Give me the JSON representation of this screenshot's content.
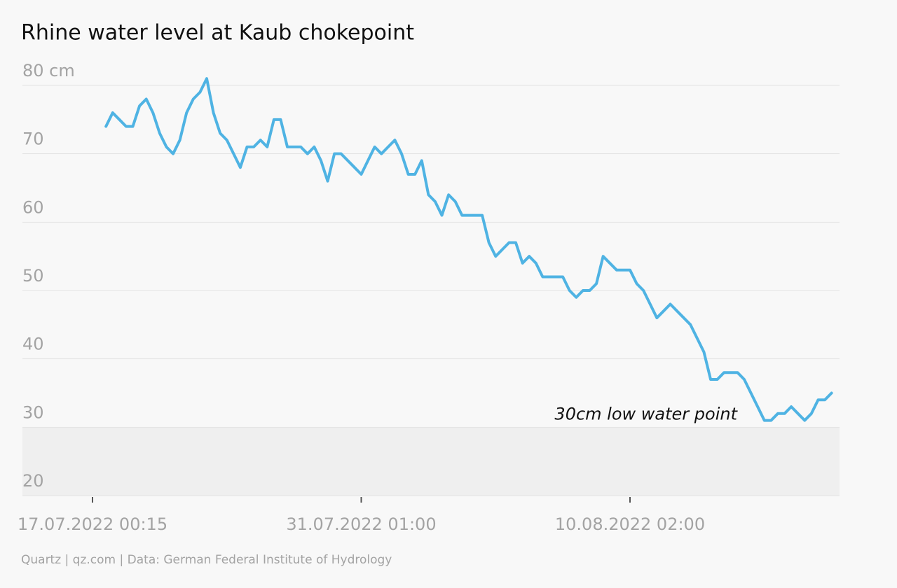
{
  "chart_data": {
    "type": "line",
    "title": "Rhine water level at Kaub chokepoint",
    "source": "Quartz | qz.com | Data: German Federal Institute of Hydrology",
    "annotation": "30cm low water point",
    "low_water_level": 30,
    "ylim": [
      20,
      80
    ],
    "yticks": [
      20,
      30,
      40,
      50,
      60,
      70,
      {
        "value": 80,
        "label": "80 cm"
      }
    ],
    "grid": true,
    "color": "#4fb3e3",
    "band_color": "#efefef",
    "categories": [
      "17.07.2022 00:15",
      null,
      null,
      null,
      null,
      null,
      null,
      null,
      null,
      null,
      null,
      null,
      null,
      null,
      null,
      null,
      null,
      null,
      null,
      null,
      null,
      null,
      null,
      null,
      null,
      null,
      null,
      null,
      null,
      null,
      null,
      null,
      null,
      null,
      null,
      null,
      null,
      null,
      null,
      null,
      "31.07.2022 01:00",
      null,
      null,
      null,
      null,
      null,
      null,
      null,
      null,
      null,
      null,
      null,
      null,
      null,
      null,
      null,
      null,
      null,
      null,
      null,
      null,
      null,
      null,
      null,
      null,
      null,
      null,
      null,
      null,
      null,
      null,
      null,
      null,
      null,
      null,
      null,
      null,
      null,
      null,
      null,
      "10.08.2022 02:00",
      null,
      null,
      null,
      null,
      null,
      null,
      null,
      null,
      null,
      null,
      null,
      null,
      null,
      null,
      null,
      null,
      null,
      null,
      null,
      null,
      null,
      null,
      null,
      null,
      null,
      null,
      null,
      null,
      null,
      null
    ],
    "values": [
      null,
      null,
      74,
      76,
      75,
      74,
      74,
      77,
      78,
      76,
      73,
      71,
      70,
      72,
      76,
      78,
      79,
      81,
      76,
      73,
      72,
      70,
      68,
      71,
      71,
      72,
      71,
      75,
      75,
      71,
      71,
      71,
      70,
      71,
      69,
      66,
      70,
      70,
      69,
      68,
      67,
      69,
      71,
      70,
      71,
      72,
      70,
      67,
      67,
      69,
      64,
      63,
      61,
      64,
      63,
      61,
      61,
      61,
      61,
      57,
      55,
      56,
      57,
      57,
      54,
      55,
      54,
      52,
      52,
      52,
      52,
      50,
      49,
      50,
      50,
      51,
      55,
      54,
      53,
      53,
      53,
      51,
      50,
      48,
      46,
      47,
      48,
      47,
      46,
      45,
      43,
      41,
      37,
      37,
      38,
      38,
      38,
      37,
      35,
      33,
      31,
      31,
      32,
      32,
      33,
      32,
      31,
      32,
      34,
      34,
      35
    ]
  }
}
